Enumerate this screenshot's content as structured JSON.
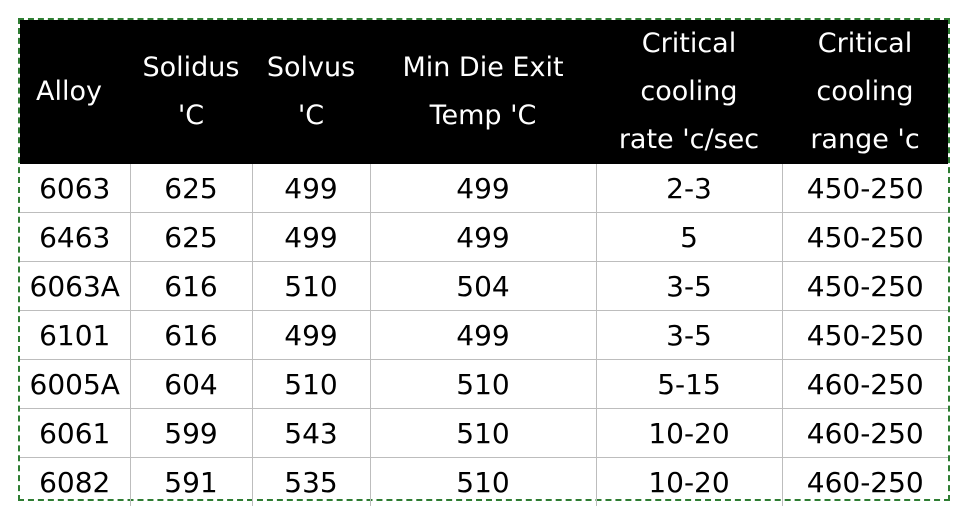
{
  "table": {
    "headers": [
      [
        "Alloy"
      ],
      [
        "Solidus",
        "'C"
      ],
      [
        "Solvus",
        "'C"
      ],
      [
        "Min Die Exit",
        "Temp 'C"
      ],
      [
        "Critical",
        "cooling",
        "rate 'c/sec"
      ],
      [
        "Critical",
        "cooling",
        "range 'c"
      ]
    ],
    "rows": [
      [
        "6063",
        "625",
        "499",
        "499",
        "2-3",
        "450-250"
      ],
      [
        "6463",
        "625",
        "499",
        "499",
        "5",
        "450-250"
      ],
      [
        "6063A",
        "616",
        "510",
        "504",
        "3-5",
        "450-250"
      ],
      [
        "6101",
        "616",
        "499",
        "499",
        "3-5",
        "450-250"
      ],
      [
        "6005A",
        "604",
        "510",
        "510",
        "5-15",
        "460-250"
      ],
      [
        "6061",
        "599",
        "543",
        "510",
        "10-20",
        "460-250"
      ],
      [
        "6082",
        "591",
        "535",
        "510",
        "10-20",
        "460-250"
      ]
    ]
  }
}
